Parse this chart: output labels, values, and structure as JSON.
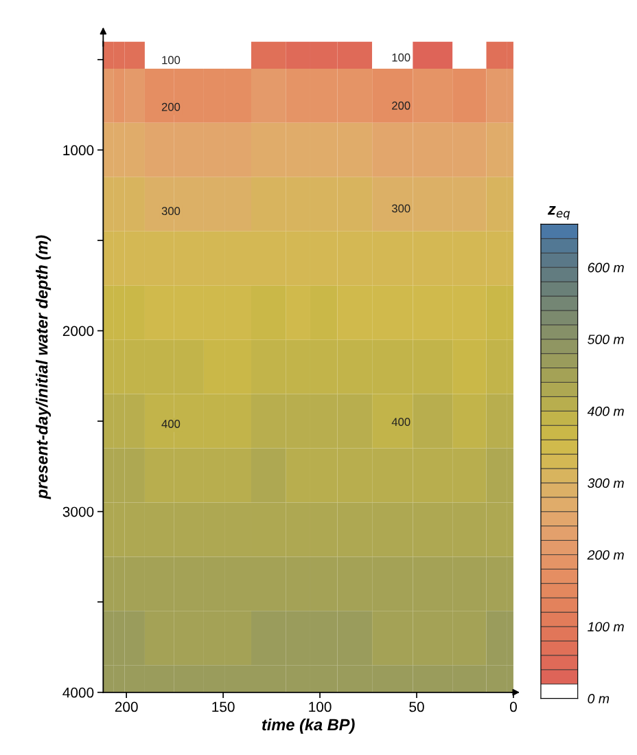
{
  "chart_data": {
    "type": "heatmap",
    "xlabel": "time (ka BP)",
    "ylabel": "present-day/initial water depth (m)",
    "clabel": "z$_{eq}$",
    "x": [
      209,
      204,
      198,
      183,
      168,
      152,
      146,
      125,
      110,
      100,
      82,
      64,
      40,
      23,
      5,
      2
    ],
    "xlim": [
      212,
      0
    ],
    "xticks": [
      200,
      150,
      100,
      50,
      0
    ],
    "ylim": [
      4000,
      400
    ],
    "yticks": [
      {
        "value": 500,
        "label": null
      },
      1000,
      {
        "value": 1500,
        "label": null
      },
      2000,
      {
        "value": 2500,
        "label": null
      },
      3000,
      {
        "value": 3500,
        "label": null
      },
      4000
    ],
    "cells": [
      [
        69,
        61,
        69,
        10,
        10,
        null,
        null,
        78,
        44,
        57,
        44,
        18,
        27,
        null,
        74,
        74
      ],
      [
        200,
        197,
        200,
        175,
        175,
        164,
        162,
        203,
        189,
        195,
        189,
        178,
        182,
        162,
        201,
        201
      ],
      [
        264,
        263,
        264,
        252,
        252,
        246,
        245,
        266,
        260,
        262,
        260,
        254,
        256,
        245,
        265,
        265
      ],
      [
        303,
        302,
        303,
        295,
        295,
        291,
        290,
        304,
        300,
        302,
        300,
        296,
        297,
        290,
        304,
        304
      ],
      [
        335,
        334,
        335,
        328,
        328,
        326,
        325,
        336,
        332,
        334,
        332,
        329,
        330,
        325,
        336,
        336
      ],
      [
        362,
        361,
        362,
        356,
        356,
        353,
        353,
        363,
        359,
        361,
        359,
        357,
        358,
        353,
        362,
        362
      ],
      [
        385,
        384,
        385,
        381,
        381,
        379,
        378,
        386,
        383,
        384,
        383,
        381,
        382,
        378,
        385,
        385
      ],
      [
        403,
        402,
        403,
        399,
        399,
        397,
        397,
        404,
        401,
        402,
        401,
        399,
        400,
        397,
        403,
        403
      ],
      [
        420,
        420,
        420,
        416,
        416,
        414,
        414,
        421,
        419,
        419,
        419,
        417,
        417,
        414,
        420,
        420
      ],
      [
        435,
        435,
        435,
        432,
        432,
        430,
        430,
        436,
        434,
        434,
        434,
        432,
        433,
        430,
        435,
        435
      ],
      [
        448,
        448,
        448,
        445,
        445,
        444,
        444,
        449,
        447,
        448,
        447,
        446,
        446,
        444,
        449,
        449
      ],
      [
        461,
        461,
        461,
        458,
        458,
        457,
        457,
        461,
        460,
        460,
        460,
        459,
        459,
        457,
        461,
        461
      ],
      [
        473,
        472,
        473,
        470,
        470,
        469,
        468,
        473,
        472,
        472,
        472,
        470,
        471,
        468,
        473,
        473
      ]
    ],
    "colors": [
      "#ffffff",
      "#de6458",
      "#df6a58",
      "#e07058",
      "#e17659",
      "#e27c5a",
      "#e3825c",
      "#e4885e",
      "#e58e62",
      "#e59466",
      "#e49a6a",
      "#e3a06c",
      "#e2a66c",
      "#e0ac6a",
      "#dcb066",
      "#d8b45e",
      "#d4b854",
      "#d0ba4c",
      "#cab848",
      "#c2b44a",
      "#b8ae4e",
      "#aea852",
      "#a4a256",
      "#9a9c5c",
      "#909662",
      "#869068",
      "#7c8a6e",
      "#748674",
      "#6a8078",
      "#627c80",
      "#5a7888",
      "#527894",
      "#4a78a6"
    ],
    "clim": [
      0,
      660
    ],
    "cticks": [
      {
        "value": 0,
        "label": "0 m"
      },
      {
        "value": 100,
        "label": "100 m"
      },
      {
        "value": 200,
        "label": "200 m"
      },
      {
        "value": 300,
        "label": "300 m"
      },
      {
        "value": 400,
        "label": "400 m"
      },
      {
        "value": 500,
        "label": "500 m"
      },
      {
        "value": 600,
        "label": "600 m"
      }
    ],
    "annotations": [
      "100",
      "200",
      "300",
      "400",
      "100",
      "200",
      "300",
      "400"
    ],
    "grid": false
  }
}
